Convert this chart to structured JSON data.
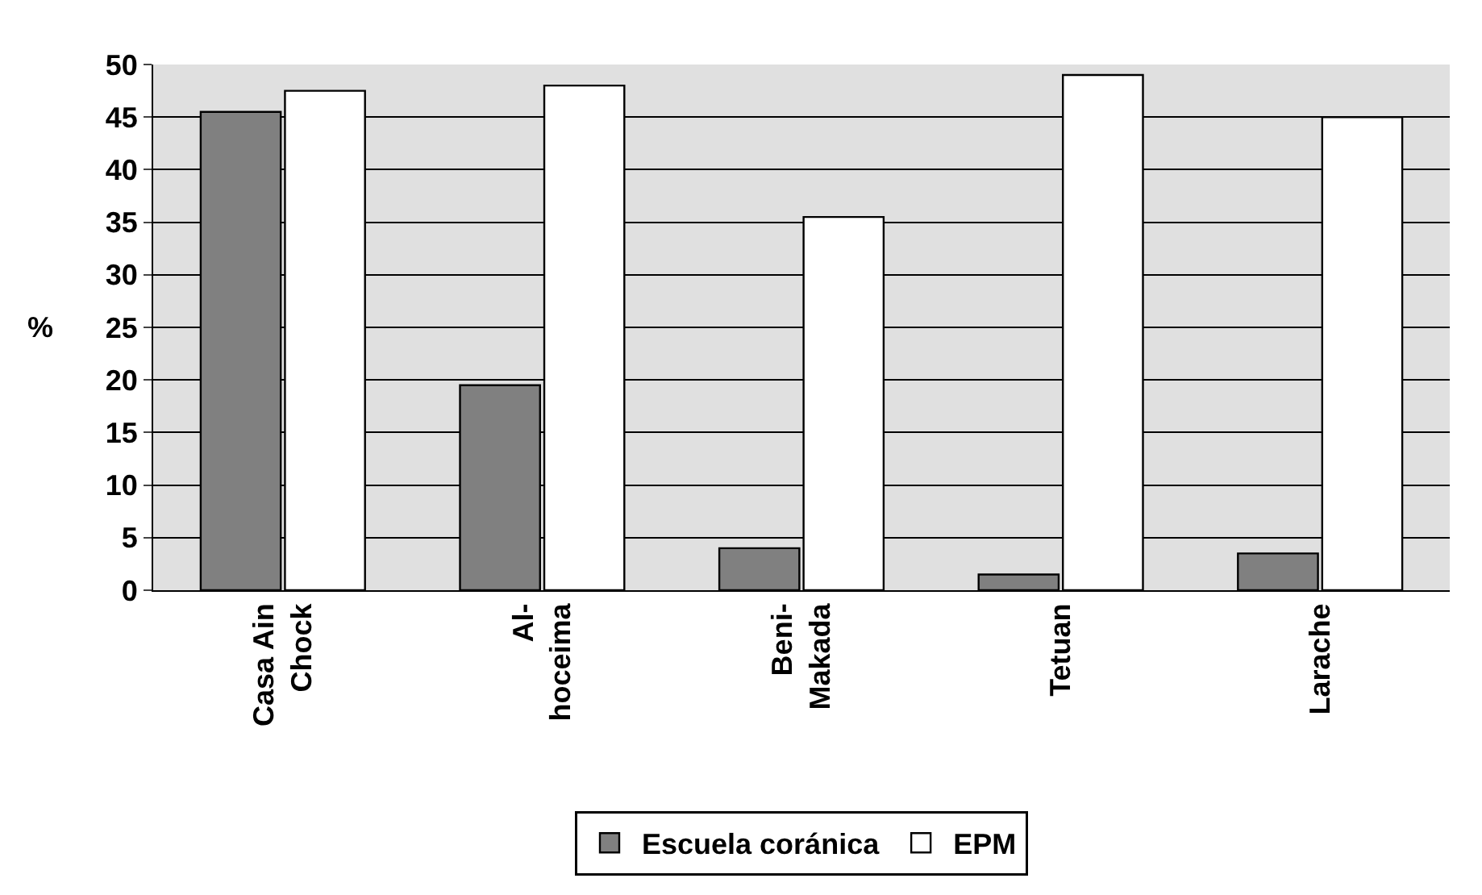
{
  "chart_data": {
    "type": "bar",
    "ylabel": "%",
    "categories": [
      "Casa Ain Chock",
      "Al-hoceima",
      "Beni-Makada",
      "Tetuan",
      "Larache"
    ],
    "series": [
      {
        "name": "Escuela coránica",
        "color": "#808080",
        "values": [
          45.5,
          19.5,
          4,
          1.5,
          3.5
        ]
      },
      {
        "name": "EPM",
        "color": "#ffffff",
        "values": [
          47.5,
          48,
          35.5,
          49,
          45
        ]
      }
    ],
    "ylim": [
      0,
      50
    ],
    "yticks": [
      0,
      5,
      10,
      15,
      20,
      25,
      30,
      35,
      40,
      45,
      50
    ],
    "grid": "y",
    "legend": "bottom"
  }
}
